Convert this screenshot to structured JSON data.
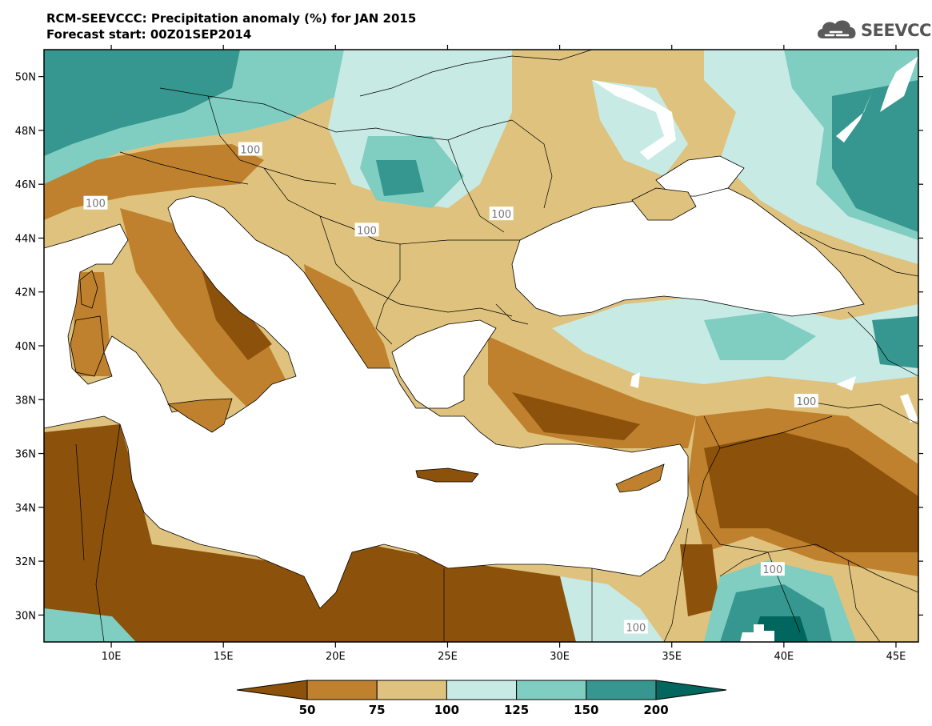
{
  "header": {
    "title": "RCM-SEEVCCC: Precipitation anomaly (%) for JAN 2015",
    "subtitle": "Forecast start: 00Z01SEP2014"
  },
  "logo": {
    "text": "SEEVCCC",
    "icon": "cloud-icon",
    "color": "#5a5a5a"
  },
  "chart_data": {
    "type": "heatmap",
    "title": "RCM-SEEVCCC: Precipitation anomaly (%) for JAN 2015",
    "subtitle": "Forecast start: 00Z01SEP2014",
    "xlim": [
      7,
      46
    ],
    "ylim": [
      29,
      51
    ],
    "x_ticks": [
      {
        "value": 10,
        "label": "10E"
      },
      {
        "value": 15,
        "label": "15E"
      },
      {
        "value": 20,
        "label": "20E"
      },
      {
        "value": 25,
        "label": "25E"
      },
      {
        "value": 30,
        "label": "30E"
      },
      {
        "value": 35,
        "label": "35E"
      },
      {
        "value": 40,
        "label": "40E"
      },
      {
        "value": 45,
        "label": "45E"
      }
    ],
    "y_ticks": [
      {
        "value": 30,
        "label": "30N"
      },
      {
        "value": 32,
        "label": "32N"
      },
      {
        "value": 34,
        "label": "34N"
      },
      {
        "value": 36,
        "label": "36N"
      },
      {
        "value": 38,
        "label": "38N"
      },
      {
        "value": 40,
        "label": "40N"
      },
      {
        "value": 42,
        "label": "42N"
      },
      {
        "value": 44,
        "label": "44N"
      },
      {
        "value": 46,
        "label": "46N"
      },
      {
        "value": 48,
        "label": "48N"
      },
      {
        "value": 50,
        "label": "50N"
      }
    ],
    "contour_labels": [
      {
        "lon": 16.2,
        "lat": 47.3,
        "text": "100"
      },
      {
        "lon": 9.3,
        "lat": 45.3,
        "text": "100"
      },
      {
        "lon": 21.4,
        "lat": 44.3,
        "text": "100"
      },
      {
        "lon": 27.4,
        "lat": 44.9,
        "text": "100"
      },
      {
        "lon": 41.0,
        "lat": 37.95,
        "text": "100"
      },
      {
        "lon": 39.5,
        "lat": 31.7,
        "text": "100"
      },
      {
        "lon": 33.4,
        "lat": 29.55,
        "text": "100"
      }
    ],
    "colorbar": {
      "levels": [
        "50",
        "75",
        "100",
        "125",
        "150",
        "200"
      ],
      "colors": [
        "#8c510a",
        "#bf812d",
        "#dfc27d",
        "#c7eae5",
        "#80cdc1",
        "#35978f",
        "#01665e"
      ]
    },
    "regions": [
      {
        "lon": 11,
        "lat": 33,
        "rx": 5.5,
        "ry": 4.0,
        "level": 0
      },
      {
        "lon": 21,
        "lat": 30.7,
        "rx": 7.0,
        "ry": 1.8,
        "level": 0
      },
      {
        "lon": 39,
        "lat": 34.6,
        "rx": 4.5,
        "ry": 2.2,
        "level": 0
      },
      {
        "lon": 31,
        "lat": 30.3,
        "rx": 3.5,
        "ry": 1.2,
        "level": 0
      },
      {
        "lon": 13,
        "lat": 42.5,
        "rx": 2.5,
        "ry": 1.5,
        "level": 1
      },
      {
        "lon": 29,
        "lat": 38.0,
        "rx": 4.0,
        "ry": 1.0,
        "level": 1
      },
      {
        "lon": 38,
        "lat": 36.5,
        "rx": 5.0,
        "ry": 1.2,
        "level": 1
      },
      {
        "lon": 21,
        "lat": 46.0,
        "rx": 5.0,
        "ry": 2.5,
        "level": 2
      },
      {
        "lon": 27,
        "lat": 47.5,
        "rx": 3.5,
        "ry": 2.5,
        "level": 2
      },
      {
        "lon": 33,
        "lat": 48.5,
        "rx": 3.0,
        "ry": 2.0,
        "level": 2
      },
      {
        "lon": 27,
        "lat": 43.5,
        "rx": 3.0,
        "ry": 1.5,
        "level": 2
      },
      {
        "lon": 10,
        "lat": 48.5,
        "rx": 4.0,
        "ry": 2.0,
        "level": 5
      },
      {
        "lon": 43,
        "lat": 47.5,
        "rx": 3.5,
        "ry": 3.0,
        "level": 5
      },
      {
        "lon": 22,
        "lat": 47.5,
        "rx": 2.0,
        "ry": 1.2,
        "level": 4
      },
      {
        "lon": 39,
        "lat": 30.0,
        "rx": 2.5,
        "ry": 1.2,
        "level": 5
      },
      {
        "lon": 36,
        "lat": 40.5,
        "rx": 4.5,
        "ry": 1.2,
        "level": 3
      },
      {
        "lon": 43,
        "lat": 40.5,
        "rx": 3.0,
        "ry": 1.5,
        "level": 4
      }
    ]
  }
}
